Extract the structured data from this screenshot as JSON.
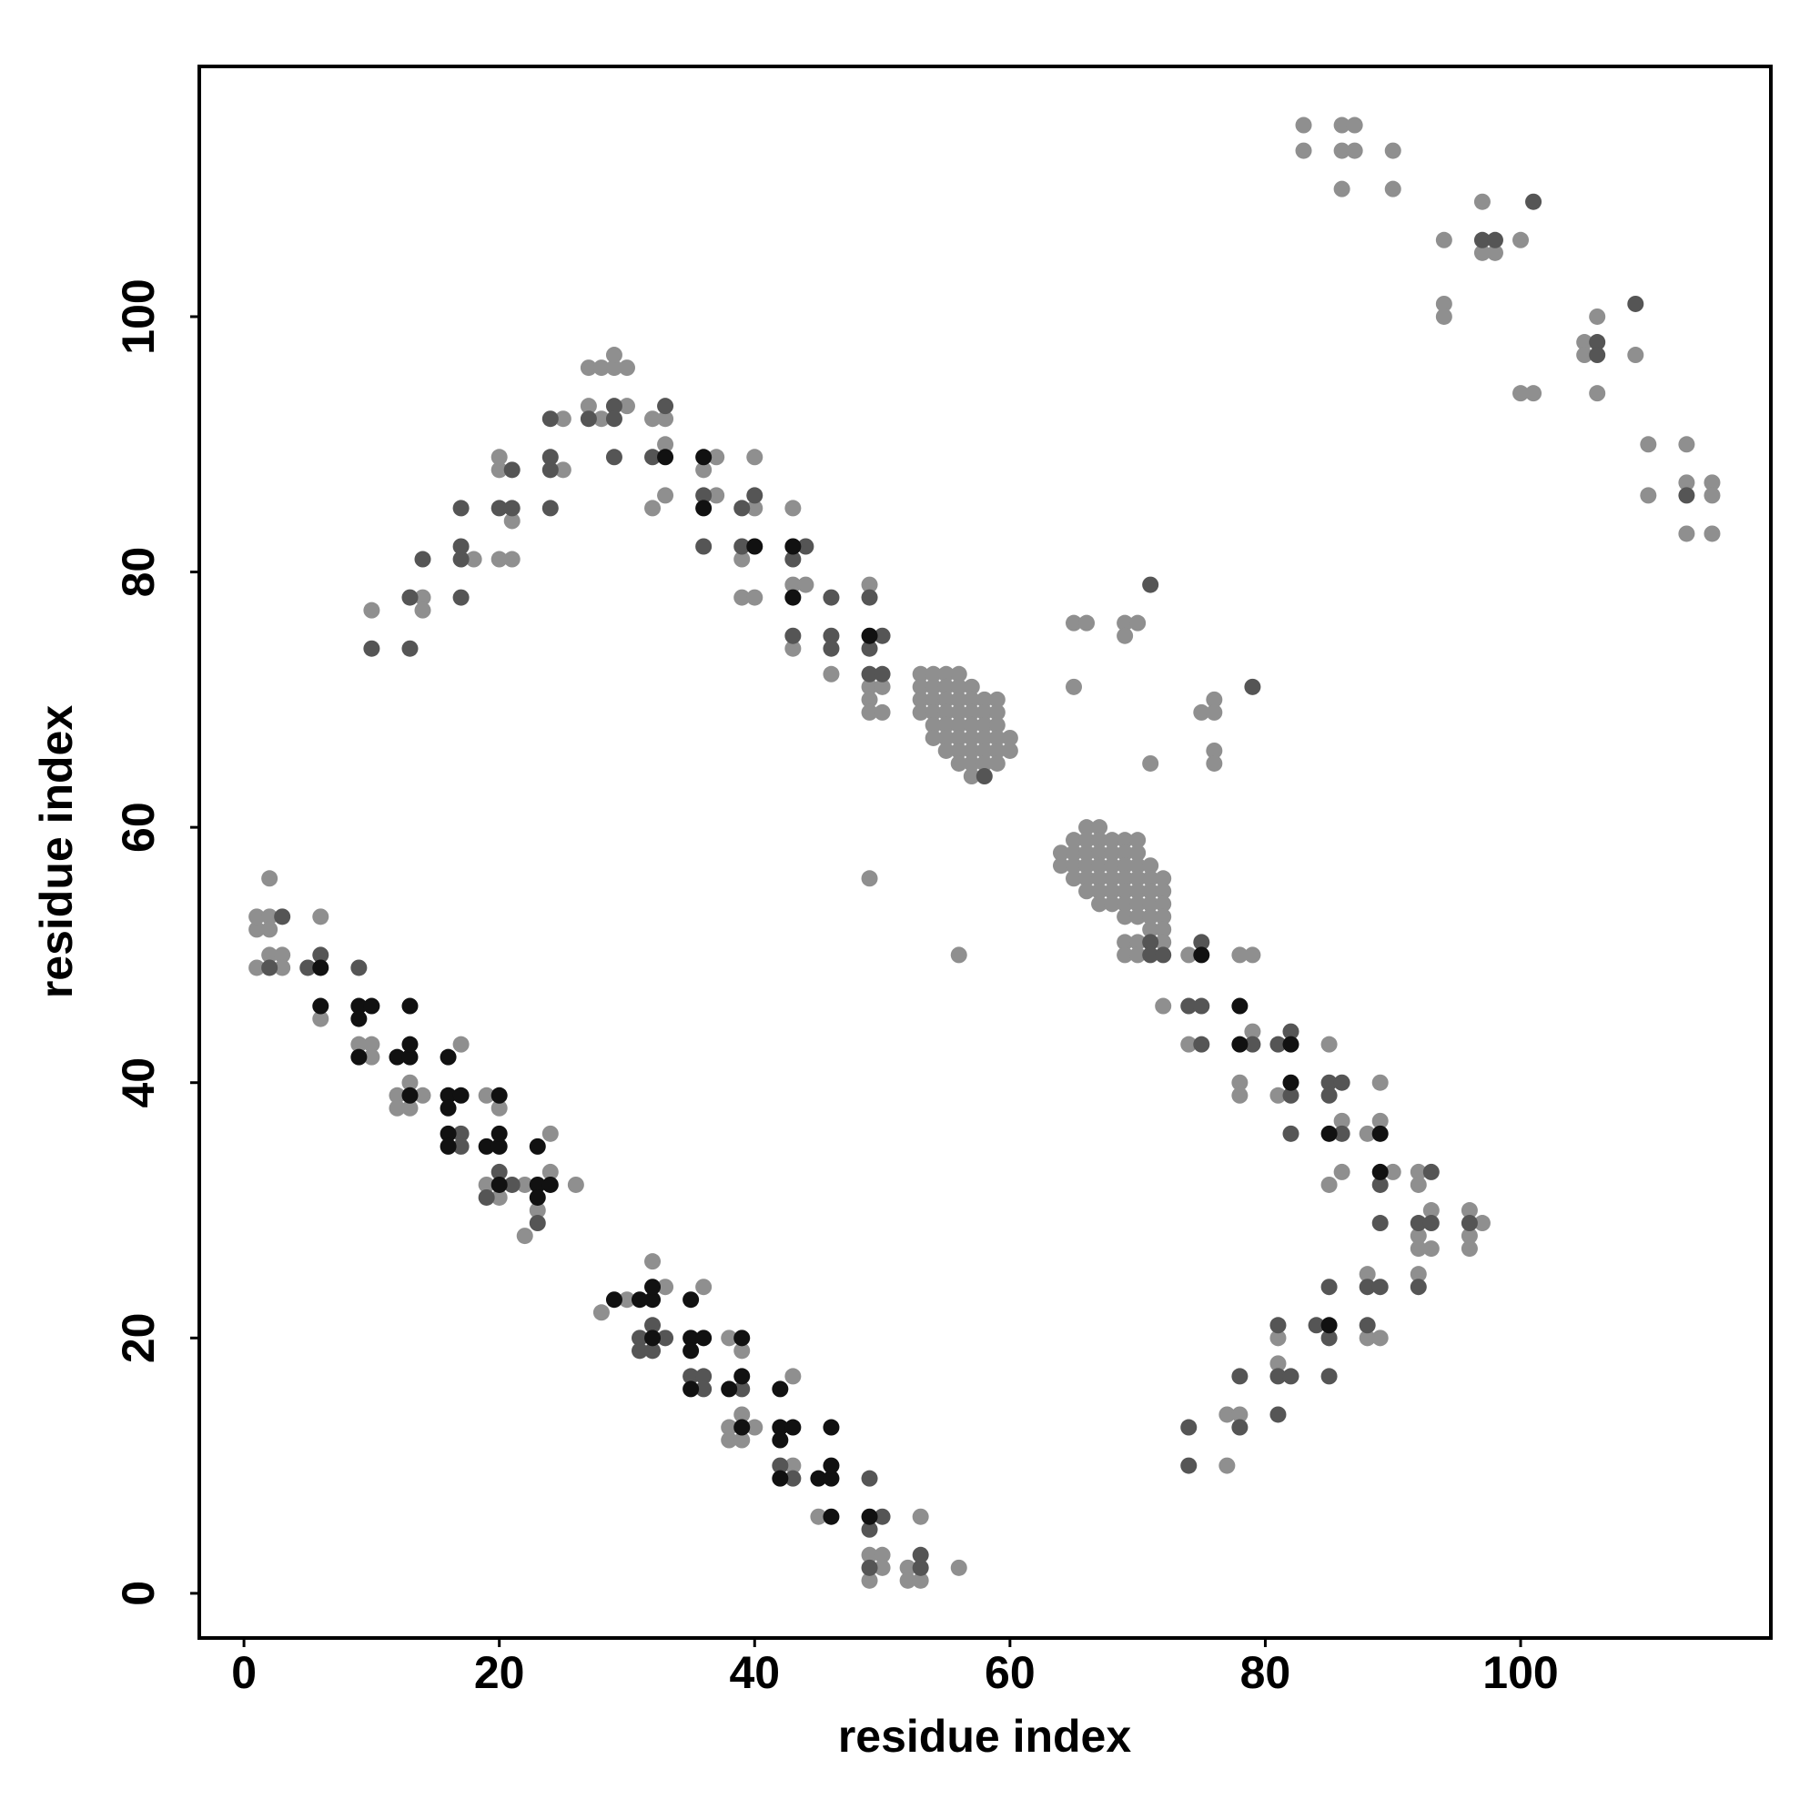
{
  "chart_data": {
    "type": "scatter",
    "x_label": "residue index",
    "y_label": "residue index",
    "xlim": [
      -3.5,
      119.6
    ],
    "ylim": [
      -3.5,
      119.6
    ],
    "xticks": [
      0,
      20,
      40,
      60,
      80,
      100
    ],
    "yticks": [
      0,
      20,
      40,
      60,
      80,
      100
    ],
    "series": [
      {
        "color": "#8f8f8f",
        "x": [
          1,
          1,
          2,
          2,
          2,
          1,
          2,
          3,
          3,
          6,
          6,
          9,
          10,
          10,
          12,
          14,
          12,
          13,
          13,
          17,
          19,
          20,
          19,
          20,
          22,
          23,
          22,
          24,
          24,
          26,
          28,
          30,
          32,
          33,
          36,
          38,
          39,
          38,
          40,
          38,
          39,
          39,
          43,
          43,
          45,
          49,
          50,
          50,
          49,
          52,
          52,
          53,
          53,
          56,
          10,
          14,
          14,
          18,
          20,
          20,
          21,
          20,
          21,
          25,
          25,
          27,
          27,
          28,
          29,
          29,
          30,
          30,
          28,
          32,
          33,
          33,
          32,
          33,
          37,
          36,
          37,
          40,
          40,
          39,
          39,
          40,
          43,
          43,
          44,
          43,
          46,
          49,
          49,
          50,
          49,
          49,
          50,
          49,
          56,
          53,
          54,
          55,
          56,
          53,
          54,
          55,
          56,
          57,
          53,
          54,
          55,
          56,
          57,
          58,
          59,
          53,
          54,
          55,
          56,
          57,
          58,
          59,
          54,
          55,
          56,
          57,
          58,
          59,
          54,
          55,
          56,
          57,
          58,
          59,
          60,
          55,
          56,
          57,
          58,
          59,
          60,
          56,
          57,
          58,
          59,
          57,
          64,
          64,
          65,
          65,
          65,
          65,
          66,
          66,
          66,
          66,
          66,
          66,
          67,
          67,
          67,
          67,
          67,
          67,
          67,
          68,
          68,
          68,
          68,
          68,
          68,
          69,
          69,
          69,
          69,
          69,
          69,
          69,
          70,
          70,
          70,
          70,
          70,
          70,
          70,
          71,
          71,
          71,
          71,
          71,
          71,
          72,
          72,
          72,
          72,
          72,
          69,
          70,
          72,
          69,
          70,
          65,
          66,
          65,
          69,
          70,
          69,
          71,
          75,
          76,
          76,
          76,
          76,
          72,
          74,
          74,
          78,
          79,
          79,
          78,
          78,
          81,
          85,
          86,
          88,
          89,
          89,
          86,
          85,
          90,
          92,
          92,
          93,
          92,
          92,
          93,
          92,
          96,
          97,
          96,
          96,
          88,
          88,
          89,
          81,
          81,
          77,
          78,
          77,
          83,
          83,
          86,
          87,
          86,
          87,
          86,
          90,
          90,
          94,
          94,
          94,
          97,
          97,
          98,
          100,
          100,
          101,
          105,
          105,
          106,
          106,
          109,
          110,
          110,
          113,
          113,
          113,
          115,
          115,
          115
        ],
        "values": [
          52,
          53,
          56,
          53,
          52,
          49,
          50,
          50,
          49,
          53,
          45,
          43,
          43,
          42,
          39,
          39,
          38,
          38,
          40,
          43,
          39,
          38,
          32,
          31,
          32,
          30,
          28,
          33,
          36,
          32,
          22,
          23,
          26,
          24,
          24,
          20,
          19,
          13,
          13,
          12,
          12,
          14,
          17,
          10,
          6,
          3,
          3,
          2,
          1,
          2,
          1,
          1,
          6,
          2,
          77,
          78,
          77,
          81,
          88,
          89,
          84,
          81,
          81,
          88,
          92,
          93,
          96,
          96,
          96,
          97,
          96,
          93,
          92,
          92,
          92,
          90,
          85,
          86,
          89,
          88,
          86,
          85,
          89,
          81,
          78,
          78,
          85,
          79,
          79,
          74,
          72,
          79,
          71,
          71,
          70,
          69,
          69,
          56,
          50,
          72,
          72,
          72,
          72,
          71,
          71,
          71,
          71,
          71,
          70,
          70,
          70,
          70,
          70,
          70,
          70,
          69,
          69,
          69,
          69,
          69,
          69,
          69,
          68,
          68,
          68,
          68,
          68,
          68,
          67,
          67,
          67,
          67,
          67,
          67,
          67,
          66,
          66,
          66,
          66,
          66,
          66,
          65,
          65,
          65,
          65,
          64,
          58,
          57,
          59,
          58,
          57,
          56,
          60,
          59,
          58,
          57,
          56,
          55,
          60,
          59,
          58,
          57,
          56,
          55,
          54,
          59,
          58,
          57,
          56,
          55,
          54,
          59,
          58,
          57,
          56,
          55,
          54,
          53,
          59,
          58,
          57,
          56,
          55,
          54,
          53,
          57,
          56,
          55,
          54,
          53,
          52,
          56,
          55,
          54,
          53,
          52,
          51,
          51,
          51,
          50,
          50,
          76,
          76,
          71,
          76,
          76,
          75,
          65,
          69,
          70,
          69,
          66,
          65,
          46,
          50,
          43,
          50,
          50,
          44,
          40,
          39,
          39,
          43,
          37,
          36,
          37,
          40,
          33,
          32,
          33,
          33,
          32,
          30,
          28,
          27,
          27,
          25,
          30,
          29,
          28,
          27,
          25,
          20,
          20,
          20,
          18,
          14,
          14,
          10,
          115,
          113,
          115,
          115,
          113,
          113,
          110,
          113,
          110,
          106,
          101,
          100,
          109,
          105,
          105,
          106,
          94,
          94,
          98,
          97,
          100,
          94,
          97,
          90,
          86,
          90,
          87,
          83,
          87,
          86,
          83
        ]
      },
      {
        "color": "#555555",
        "x": [
          3,
          2,
          5,
          6,
          9,
          17,
          17,
          19,
          20,
          21,
          23,
          31,
          33,
          31,
          32,
          32,
          35,
          36,
          36,
          39,
          42,
          43,
          49,
          50,
          49,
          49,
          53,
          53,
          10,
          13,
          13,
          14,
          17,
          17,
          17,
          17,
          20,
          21,
          21,
          24,
          24,
          24,
          24,
          27,
          29,
          29,
          29,
          33,
          32,
          36,
          36,
          39,
          40,
          39,
          44,
          43,
          43,
          46,
          46,
          46,
          49,
          50,
          49,
          50,
          49,
          58,
          71,
          71,
          72,
          71,
          79,
          75,
          74,
          75,
          75,
          79,
          81,
          82,
          82,
          82,
          85,
          86,
          85,
          86,
          89,
          89,
          93,
          92,
          93,
          92,
          96,
          85,
          88,
          89,
          84,
          85,
          88,
          85,
          81,
          81,
          82,
          78,
          78,
          81,
          74,
          74,
          97,
          98,
          101,
          106,
          106,
          109,
          113
        ],
        "values": [
          53,
          49,
          49,
          50,
          49,
          36,
          35,
          31,
          33,
          32,
          29,
          20,
          20,
          19,
          19,
          21,
          17,
          17,
          16,
          16,
          10,
          9,
          9,
          6,
          5,
          2,
          2,
          3,
          74,
          74,
          78,
          81,
          78,
          81,
          82,
          85,
          85,
          85,
          88,
          85,
          88,
          89,
          92,
          92,
          93,
          92,
          89,
          93,
          89,
          86,
          82,
          85,
          86,
          82,
          82,
          81,
          75,
          78,
          75,
          74,
          78,
          75,
          72,
          72,
          74,
          64,
          51,
          50,
          50,
          79,
          71,
          51,
          46,
          46,
          43,
          43,
          43,
          44,
          39,
          36,
          40,
          40,
          39,
          36,
          32,
          29,
          33,
          29,
          29,
          24,
          29,
          24,
          24,
          24,
          21,
          20,
          21,
          17,
          21,
          17,
          17,
          17,
          13,
          14,
          13,
          10,
          106,
          106,
          109,
          98,
          97,
          101,
          86
        ]
      },
      {
        "color": "#111111",
        "x": [
          6,
          6,
          9,
          10,
          9,
          9,
          12,
          13,
          13,
          13,
          13,
          16,
          16,
          17,
          16,
          16,
          16,
          20,
          19,
          20,
          20,
          20,
          23,
          23,
          24,
          23,
          29,
          31,
          32,
          32,
          32,
          35,
          35,
          36,
          35,
          35,
          39,
          38,
          39,
          39,
          42,
          42,
          43,
          42,
          42,
          45,
          46,
          46,
          46,
          46,
          49,
          33,
          36,
          36,
          40,
          43,
          43,
          49,
          75,
          78,
          78,
          82,
          82,
          85,
          89,
          89,
          85
        ],
        "values": [
          49,
          46,
          46,
          46,
          45,
          42,
          42,
          42,
          43,
          46,
          39,
          42,
          39,
          39,
          38,
          36,
          35,
          39,
          35,
          35,
          36,
          32,
          35,
          32,
          32,
          31,
          23,
          23,
          23,
          24,
          20,
          23,
          20,
          20,
          19,
          16,
          20,
          16,
          17,
          13,
          16,
          13,
          13,
          12,
          9,
          9,
          9,
          10,
          13,
          6,
          6,
          89,
          89,
          85,
          82,
          82,
          78,
          75,
          50,
          46,
          43,
          43,
          40,
          36,
          36,
          33,
          21
        ]
      }
    ]
  }
}
